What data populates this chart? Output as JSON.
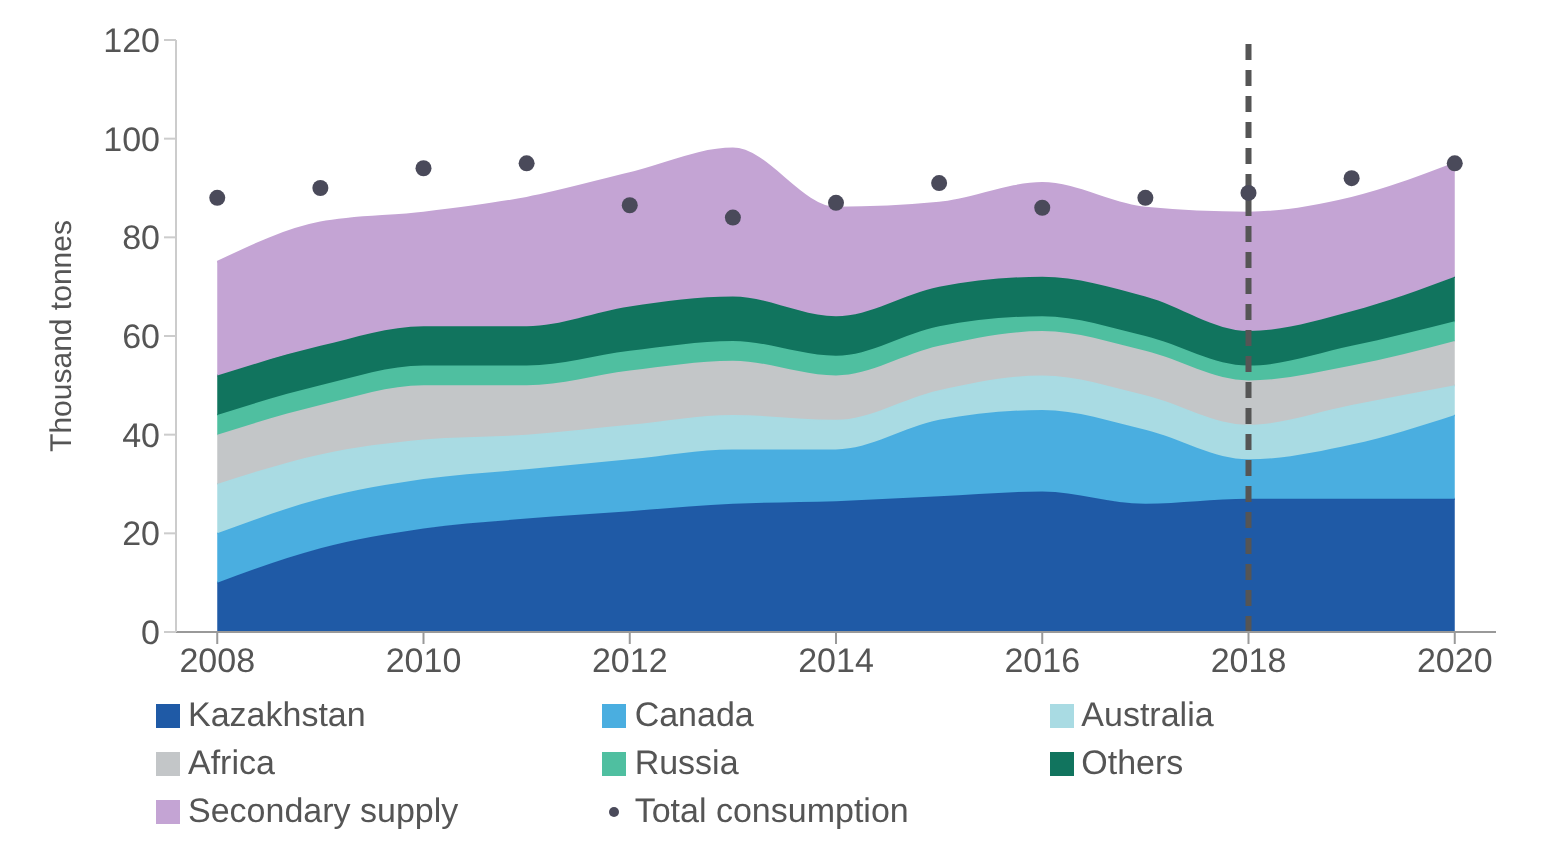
{
  "chart_data": {
    "type": "area",
    "stacked": true,
    "ylabel": "Thousand tonnes",
    "x": [
      2008,
      2009,
      2010,
      2011,
      2012,
      2013,
      2014,
      2015,
      2016,
      2017,
      2018,
      2019,
      2020
    ],
    "xlim": [
      2007.6,
      2020.4
    ],
    "xticks": [
      2008,
      2010,
      2012,
      2014,
      2016,
      2018,
      2020
    ],
    "ylim": [
      0,
      120
    ],
    "yticks": [
      0,
      20,
      40,
      60,
      80,
      100,
      120
    ],
    "grid": false,
    "legend": "bottom",
    "series": [
      {
        "name": "Kazakhstan",
        "color": "#1f5aa6",
        "values": [
          10,
          17,
          21,
          23,
          24.5,
          26,
          26.5,
          27.5,
          28.5,
          26,
          27,
          27,
          27
        ]
      },
      {
        "name": "Canada",
        "color": "#4aaee0",
        "values": [
          10,
          10,
          10,
          10,
          10.5,
          11,
          10.5,
          15.5,
          16.5,
          15,
          8,
          11,
          17
        ]
      },
      {
        "name": "Australia",
        "color": "#a9dbe3",
        "values": [
          10,
          9,
          8,
          7,
          7,
          7,
          6,
          6,
          7,
          7,
          7,
          8,
          6
        ]
      },
      {
        "name": "Africa",
        "color": "#c3c6c8",
        "values": [
          10,
          10,
          11,
          10,
          11,
          11,
          9,
          9,
          9,
          9,
          9,
          8,
          9
        ]
      },
      {
        "name": "Russia",
        "color": "#4fbfa0",
        "values": [
          4,
          4,
          4,
          4,
          4,
          4,
          4,
          4,
          3,
          3,
          3,
          4,
          4
        ]
      },
      {
        "name": "Others",
        "color": "#11745e",
        "values": [
          8,
          8,
          8,
          8,
          9,
          9,
          8,
          8,
          8,
          8,
          7,
          7,
          9
        ]
      },
      {
        "name": "Secondary supply",
        "color": "#c4a4d4",
        "values": [
          23,
          25,
          23,
          26,
          27,
          30,
          22,
          17,
          19,
          18,
          24,
          23,
          23
        ]
      },
      {
        "name": "Total consumption",
        "type": "scatter",
        "color": "#4a4a5a",
        "values": [
          88,
          90,
          94,
          95,
          86.5,
          84,
          87,
          91,
          86,
          88,
          89,
          92,
          95
        ]
      }
    ],
    "ref_lines": [
      {
        "axis": "x",
        "value": 2018,
        "color": "#555555",
        "line_style": "dashed"
      }
    ]
  }
}
